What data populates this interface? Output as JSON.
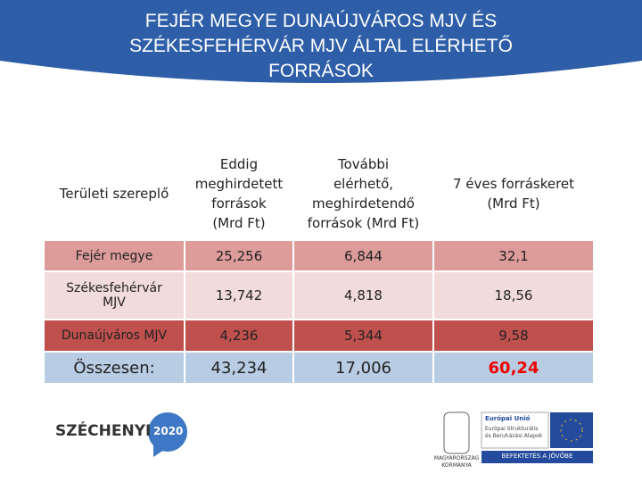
{
  "header": {
    "title": "FEJÉR MEGYE DUNAÚJVÁROS MJV ÉS\nSZÉKESFEHÉRVÁR MJV ÁLTAL ELÉRHETŐ\nFORRÁSOK"
  },
  "table": {
    "columns": [
      "Területi szereplő",
      "Eddig\nmeghirdetett\nforrások\n(Mrd Ft)",
      "További\nelérhető,\nmeghirdetendő\nforrások (Mrd Ft)",
      "7 éves forráskeret\n(Mrd Ft)"
    ],
    "rows": [
      [
        "Fejér megye",
        "25,256",
        "6,844",
        "32,1"
      ],
      [
        "Székesfehérvár\nMJV",
        "13,742",
        "4,818",
        "18,56"
      ],
      [
        "Dunaújváros MJV",
        "4,236",
        "5,344",
        "9,58"
      ],
      [
        "Összesen:",
        "43,234",
        "17,006",
        "60,24"
      ]
    ]
  },
  "footer": {
    "szechenyi": "SZÉCHENYI",
    "year": "2020",
    "government": "MAGYARORSZÁG\nKORMÁNYA",
    "eu_title": "Európai Unió",
    "eu_fund": "Európai Strukturális\nés Beruházási Alapok",
    "slogan": "BEFEKTETÉS A JÖVŐBE"
  }
}
